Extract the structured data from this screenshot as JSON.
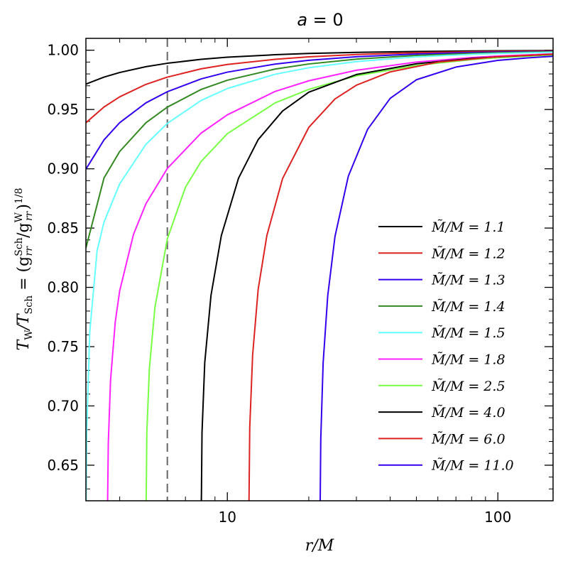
{
  "chart_data": {
    "type": "line",
    "title": "a = 0",
    "xlabel": "r/M",
    "ylabel": "T_W/T_Sch = (g_rr^Sch/g_rr^W)^1/8",
    "xscale": "log",
    "xlim": [
      3,
      160
    ],
    "ylim": [
      0.62,
      1.01
    ],
    "x_ticks": [
      10,
      100
    ],
    "x_tick_labels": [
      "10",
      "100"
    ],
    "y_ticks": [
      0.65,
      0.7,
      0.75,
      0.8,
      0.85,
      0.9,
      0.95,
      1.0
    ],
    "y_tick_labels": [
      "0.65",
      "0.70",
      "0.75",
      "0.80",
      "0.85",
      "0.90",
      "0.95",
      "1.00"
    ],
    "vline": {
      "x": 6,
      "style": "dashed",
      "color": "#666666"
    },
    "legend_position": "right",
    "series": [
      {
        "name": "M̃/M = 1.1",
        "color": "#000000",
        "x": [
          3,
          3.5,
          4,
          5,
          6,
          8,
          10,
          15,
          20,
          30,
          50,
          80,
          100,
          160
        ],
        "y": [
          0.9714,
          0.9773,
          0.9812,
          0.9861,
          0.989,
          0.9923,
          0.9941,
          0.9962,
          0.9973,
          0.9982,
          0.9989,
          0.9994,
          0.9995,
          0.9997
        ]
      },
      {
        "name": "M̃/M = 1.2",
        "color": "#dd2222",
        "x": [
          3,
          3.5,
          4,
          5,
          6,
          8,
          10,
          15,
          20,
          30,
          50,
          80,
          100,
          160
        ],
        "y": [
          0.9388,
          0.9521,
          0.9607,
          0.9712,
          0.9773,
          0.9843,
          0.988,
          0.9923,
          0.9944,
          0.9964,
          0.9979,
          0.9987,
          0.999,
          0.9994
        ]
      },
      {
        "name": "M̃/M = 1.3",
        "color": "#3300ee",
        "x": [
          3,
          3.5,
          4,
          5,
          6,
          8,
          10,
          15,
          20,
          30,
          50,
          80,
          100,
          160
        ],
        "y": [
          0.8997,
          0.9244,
          0.9389,
          0.9556,
          0.965,
          0.9758,
          0.9815,
          0.9883,
          0.9915,
          0.9945,
          0.9968,
          0.998,
          0.9984,
          0.999
        ]
      },
      {
        "name": "M̃/M = 1.4",
        "color": "#338822",
        "x": [
          3,
          3.5,
          4,
          5,
          6,
          8,
          10,
          15,
          20,
          30,
          50,
          80,
          100,
          160
        ],
        "y": [
          0.8332,
          0.8923,
          0.9146,
          0.9388,
          0.952,
          0.9669,
          0.9747,
          0.9841,
          0.9884,
          0.9925,
          0.9956,
          0.9973,
          0.9979,
          0.9987
        ]
      },
      {
        "name": "M̃/M = 1.5",
        "color": "#66ffff",
        "x": [
          3.0005,
          3.02,
          3.1,
          3.3,
          3.5,
          4,
          5,
          6,
          8,
          10,
          15,
          20,
          30,
          50,
          80,
          100,
          160
        ],
        "y": [
          0.6,
          0.6777,
          0.7624,
          0.831,
          0.8551,
          0.8873,
          0.9206,
          0.9383,
          0.9576,
          0.9677,
          0.9797,
          0.9852,
          0.9904,
          0.9944,
          0.9965,
          0.9973,
          0.9983
        ]
      },
      {
        "name": "M̃/M = 1.8",
        "color": "#ff22ff",
        "x": [
          3.6005,
          3.63,
          3.7,
          3.85,
          4,
          4.5,
          5,
          6,
          8,
          10,
          15,
          20,
          30,
          50,
          80,
          100,
          160
        ],
        "y": [
          0.6,
          0.6685,
          0.7216,
          0.7705,
          0.7972,
          0.8448,
          0.8705,
          0.9003,
          0.9301,
          0.9455,
          0.9652,
          0.9742,
          0.9831,
          0.99,
          0.9938,
          0.9951,
          0.9969
        ]
      },
      {
        "name": "M̃/M = 2.5",
        "color": "#77ff44",
        "x": [
          5.0007,
          5.04,
          5.15,
          5.4,
          6,
          7,
          8,
          10,
          15,
          20,
          30,
          50,
          80,
          100,
          160
        ],
        "y": [
          0.6,
          0.678,
          0.7317,
          0.7833,
          0.8409,
          0.8844,
          0.9062,
          0.9296,
          0.9555,
          0.967,
          0.9784,
          0.9872,
          0.9921,
          0.9937,
          0.9961
        ]
      },
      {
        "name": "M̃/M = 4.0",
        "color": "#000000",
        "x": [
          8.001,
          8.06,
          8.25,
          8.7,
          9.5,
          11,
          13,
          16,
          20,
          30,
          50,
          80,
          100,
          160
        ],
        "y": [
          0.6,
          0.6773,
          0.7365,
          0.7932,
          0.8436,
          0.8921,
          0.9246,
          0.9487,
          0.9646,
          0.9795,
          0.9886,
          0.993,
          0.9944,
          0.9966
        ]
      },
      {
        "name": "M̃/M = 6.0",
        "color": "#dd2222",
        "x": [
          12.001,
          12.1,
          12.4,
          13,
          14,
          16,
          20,
          25,
          30,
          40,
          60,
          100,
          160
        ],
        "y": [
          0.6,
          0.6815,
          0.7428,
          0.7983,
          0.8438,
          0.8917,
          0.9349,
          0.9589,
          0.9705,
          0.9817,
          0.9899,
          0.9945,
          0.9967
        ]
      },
      {
        "name": "M̃/M = 11.0",
        "color": "#3300ee",
        "x": [
          22.002,
          22.15,
          22.6,
          23.5,
          25,
          28,
          33,
          40,
          50,
          70,
          100,
          130,
          160
        ],
        "y": [
          0.6,
          0.6719,
          0.7362,
          0.7928,
          0.8429,
          0.8937,
          0.9333,
          0.9594,
          0.9751,
          0.9858,
          0.9914,
          0.9936,
          0.9949
        ]
      }
    ]
  }
}
